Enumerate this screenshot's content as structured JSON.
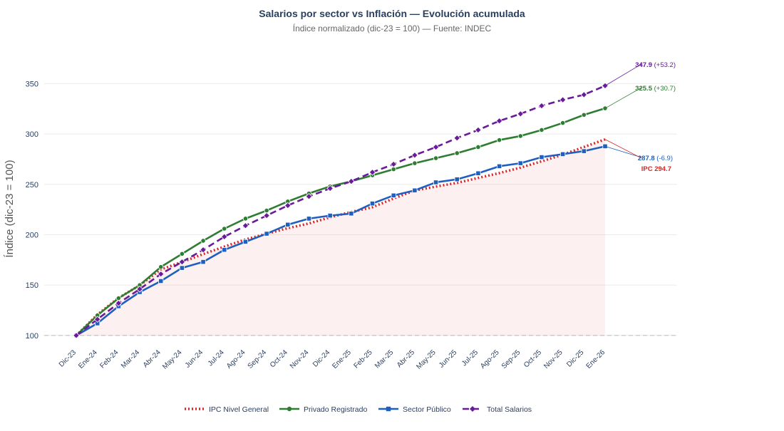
{
  "chart_data": {
    "type": "line",
    "title": "Salarios por sector vs Inflación — Evolución acumulada",
    "subtitle": "Índice normalizado (dic-23 = 100) — Fuente: INDEC",
    "ylabel": "Índice (dic-23 = 100)",
    "xlabel": "",
    "ylim": [
      90,
      380
    ],
    "yticks": [
      100,
      150,
      200,
      250,
      300,
      350
    ],
    "baseline": 100,
    "grid": true,
    "legend_position": "bottom-center",
    "categories": [
      "Dic-23",
      "Ene-24",
      "Feb-24",
      "Mar-24",
      "Abr-24",
      "May-24",
      "Jun-24",
      "Jul-24",
      "Ago-24",
      "Sep-24",
      "Oct-24",
      "Nov-24",
      "Dic-24",
      "Ene-25",
      "Feb-25",
      "Mar-25",
      "Abr-25",
      "May-25",
      "Jun-25",
      "Jul-25",
      "Ago-25",
      "Sep-25",
      "Oct-25",
      "Nov-25",
      "Dic-25",
      "Ene-26"
    ],
    "series": [
      {
        "name": "IPC Nivel General",
        "color": "#d62728",
        "style": "dotted",
        "marker": "none",
        "fill": true,
        "values": [
          100,
          120.7,
          137.2,
          149.9,
          165.6,
          172.9,
          180.8,
          188.2,
          195.3,
          201.0,
          206.5,
          211.2,
          217.3,
          222.6,
          227.3,
          236.0,
          243.9,
          247.8,
          251.5,
          256.4,
          261.2,
          266.6,
          272.9,
          279.5,
          287.1,
          294.7
        ]
      },
      {
        "name": "Privado Registrado",
        "color": "#2e7d32",
        "style": "solid",
        "marker": "circle",
        "values": [
          100,
          120,
          137,
          150,
          168,
          181,
          194,
          206,
          216,
          224,
          233,
          241,
          248,
          253,
          259,
          265,
          271,
          276,
          281,
          287,
          294,
          298,
          304,
          311,
          319,
          325.5
        ]
      },
      {
        "name": "Sector Público",
        "color": "#1f5fbf",
        "style": "solid",
        "marker": "square",
        "values": [
          100,
          112,
          129,
          143,
          154,
          167,
          173,
          185,
          193,
          201,
          210,
          216,
          219,
          221,
          231,
          239,
          244,
          252,
          255,
          261,
          268,
          271,
          277,
          280,
          283,
          287.8
        ]
      },
      {
        "name": "Total Salarios",
        "color": "#6a1b9a",
        "style": "dashed",
        "marker": "diamond",
        "values": [
          100,
          116,
          132,
          146,
          161,
          173,
          185,
          198,
          209,
          219,
          229,
          238,
          246,
          253,
          262,
          270,
          279,
          287,
          296,
          304,
          313,
          320,
          328,
          334,
          339,
          347.9
        ]
      }
    ],
    "annotations": [
      {
        "series": "Total Salarios",
        "value": "347.9",
        "delta": "(+53.2)",
        "color": "#6a1b9a"
      },
      {
        "series": "Privado Registrado",
        "value": "325.5",
        "delta": "(+30.7)",
        "color": "#2e7d32"
      },
      {
        "series": "Sector Público",
        "value": "287.8",
        "delta": "(-6.9)",
        "color": "#1f5fbf"
      },
      {
        "series": "IPC Nivel General",
        "value": "IPC 294.7",
        "delta": "",
        "color": "#d62728"
      }
    ]
  }
}
